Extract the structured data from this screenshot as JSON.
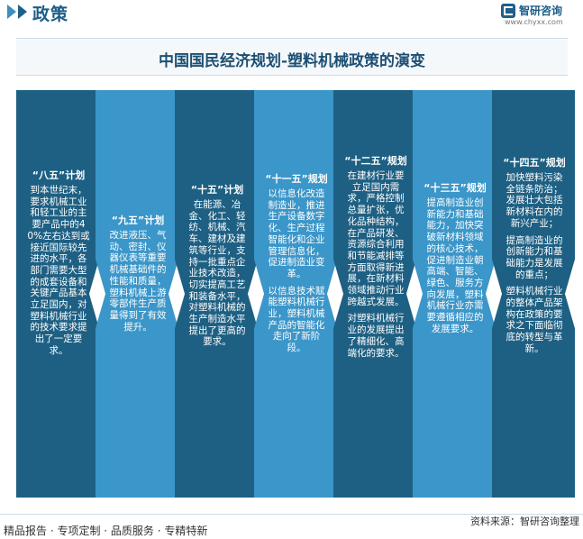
{
  "header": {
    "section_title": "政策",
    "brand_name": "智研咨询",
    "brand_url": "www.chyxx.com"
  },
  "title": "中国国民经济规划-塑料机械政策的演变",
  "colors": {
    "dark": "#1e6083",
    "light": "#3b96c9",
    "accent": "#1c5d88"
  },
  "plans": [
    {
      "title": "“八五”计划",
      "paragraphs": [
        "到本世纪末，要求机械工业和轻工业的主要产品中的40%左右达到或接近国际较先进的水平，各部门需要大型的成套设备和关键产品基本立足国内，对塑料机械行业的技术要求提出了一定要求。"
      ]
    },
    {
      "title": "“九五”计划",
      "paragraphs": [
        "改进液压、气动、密封、仪器仪表等重要机械基础件的性能和质量，塑料机械上游零部件生产质量得到了有效提升。"
      ]
    },
    {
      "title": "“十五”计划",
      "paragraphs": [
        "在能源、冶金、化工、轻纺、机械、汽车、建材及建筑等行业，支持一批重点企业技术改造，切实提高工艺和装备水平，对塑料机械的生产制造水平提出了更高的要求。"
      ]
    },
    {
      "title": "“十一五”规划",
      "paragraphs": [
        "以信息化改造制造业，推进生产设备数字化、生产过程智能化和企业管理信息化，促进制造业变革。",
        "以信息技术赋能塑料机械行业，塑料机械产品的智能化走向了新阶段。"
      ]
    },
    {
      "title": "“十二五”规划",
      "paragraphs": [
        "在建材行业要立足国内需求，严格控制总量扩张，优化品种结构，在产品研发、资源综合利用和节能减排等方面取得新进展，在新材料领域推动行业跨越式发展。",
        "对塑料机械行业的发展提出了精细化、高端化的要求。"
      ]
    },
    {
      "title": "“十三五”规划",
      "paragraphs": [
        "提高制造业创新能力和基础能力，加快突破新材料领域的核心技术，促进制造业朝高端、智能、绿色、服务方向发展，塑料机械行业亦需要遵循相应的发展要求。"
      ]
    },
    {
      "title": "“十四五”规划",
      "paragraphs": [
        "加快塑料污染全链条防治；发展壮大包括新材料在内的新兴产业；",
        "提高制造业的创新能力和基础能力是发展的重点；",
        "塑料机械行业的整体产品架构在政策的要求之下面临彻底的转型与革新。"
      ]
    }
  ],
  "footer": {
    "left": "精品报告 · 专项定制 · 品质服务 · 专精特新",
    "source": "资料来源：智研咨询整理"
  }
}
